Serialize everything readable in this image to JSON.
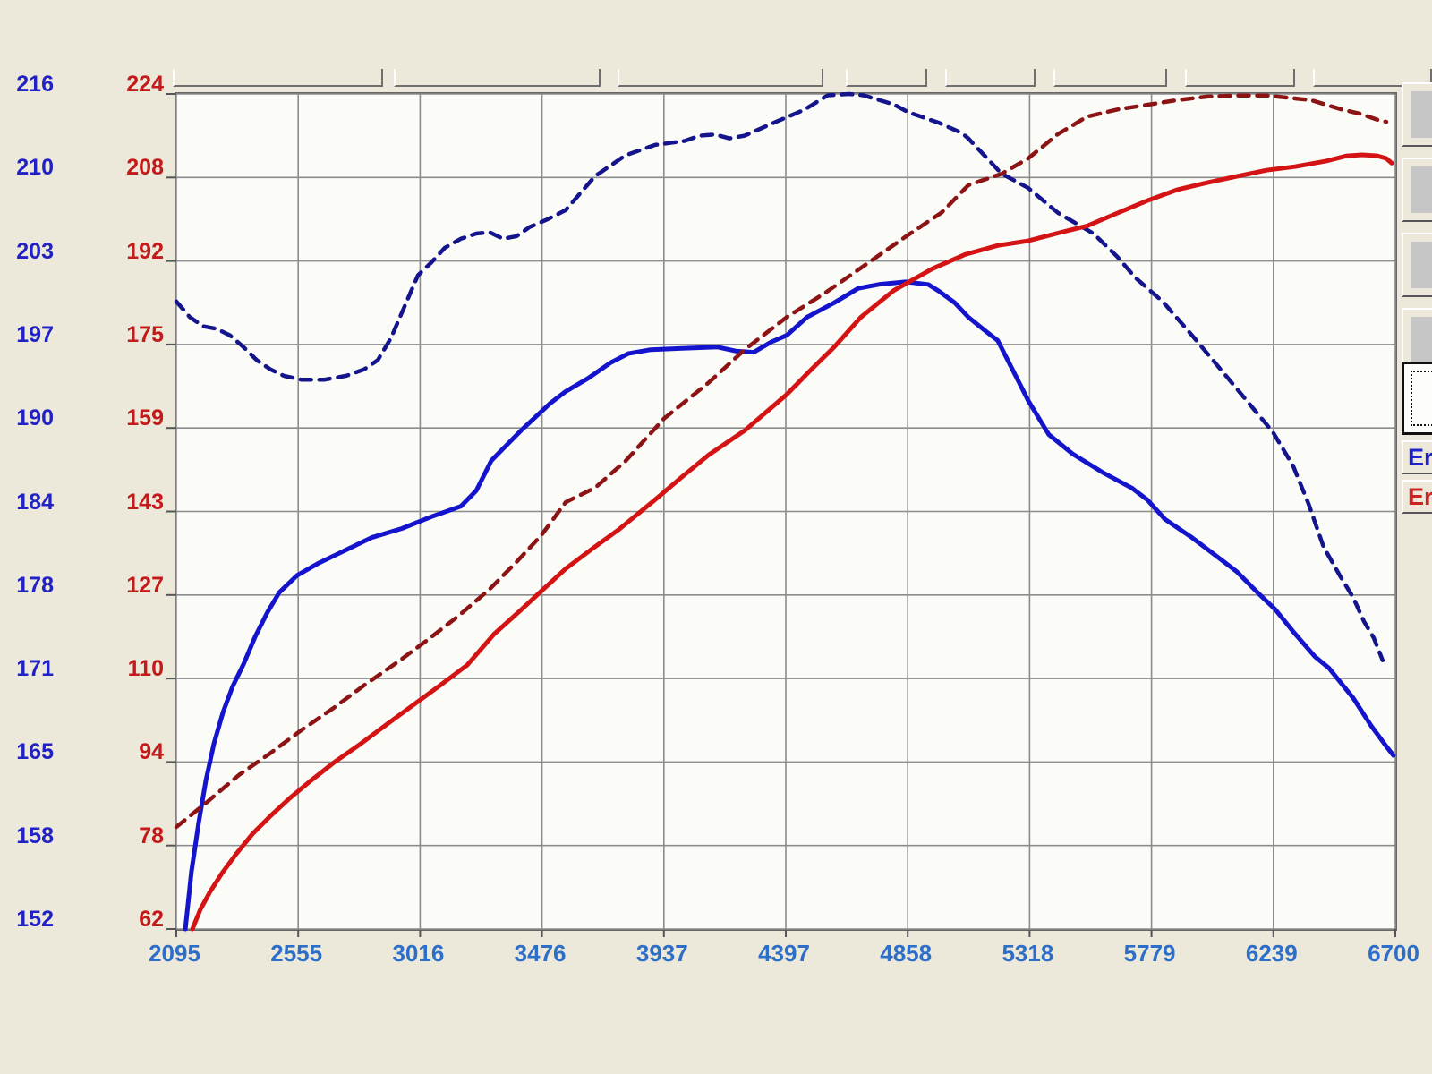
{
  "window": {
    "background_color": "#ece9da",
    "plot_background": "#fbfbf8"
  },
  "top_toolbar": {
    "note": "row of partially visible (cut-off) buttons, no readable labels",
    "button_count": 8
  },
  "right_panel": {
    "buttons": [
      {
        "name": "arrow-button-1",
        "glyph": "↖"
      },
      {
        "name": "arrow-button-2",
        "glyph": "↙"
      },
      {
        "name": "arrow-button-3",
        "glyph": "↘"
      },
      {
        "name": "arrow-button-4",
        "glyph": "↕"
      }
    ],
    "selection_button": {
      "name": "selection-rectangle-button"
    },
    "er_buttons": [
      {
        "label": "Er",
        "color": "#2222cc"
      },
      {
        "label": "Er",
        "color": "#cc2222"
      }
    ]
  },
  "chart_data": {
    "type": "line",
    "title": "",
    "xlabel": "",
    "ylabel": "",
    "grid": true,
    "legend_position": "none",
    "x_axis": {
      "min": 2095,
      "max": 6700,
      "tick_labels": [
        "2095",
        "2555",
        "3016",
        "3476",
        "3937",
        "4397",
        "4858",
        "5318",
        "5779",
        "6239",
        "6700"
      ],
      "label_color": "#2d6fc8"
    },
    "left_axis_blue": {
      "min": 152,
      "max": 216,
      "tick_labels": [
        "216",
        "210",
        "203",
        "197",
        "190",
        "184",
        "178",
        "171",
        "165",
        "158",
        "152"
      ],
      "label_color": "#2121c4"
    },
    "left_axis_red": {
      "min": 62,
      "max": 224,
      "tick_labels": [
        "224",
        "208",
        "192",
        "175",
        "159",
        "143",
        "127",
        "110",
        "94",
        "78",
        "62"
      ],
      "label_color": "#c41a1a"
    },
    "grid_color": "#8c8c8c",
    "series": [
      {
        "name": "blue-solid",
        "axis": "blue",
        "style": "solid",
        "color": "#1414cc",
        "points": [
          [
            2129,
            152.0
          ],
          [
            2152,
            156.4
          ],
          [
            2180,
            160.2
          ],
          [
            2207,
            163.4
          ],
          [
            2237,
            166.2
          ],
          [
            2271,
            168.6
          ],
          [
            2308,
            170.6
          ],
          [
            2349,
            172.3
          ],
          [
            2393,
            174.4
          ],
          [
            2440,
            176.3
          ],
          [
            2484,
            177.8
          ],
          [
            2551,
            179.1
          ],
          [
            2629,
            180.0
          ],
          [
            2720,
            180.9
          ],
          [
            2832,
            182.0
          ],
          [
            2947,
            182.7
          ],
          [
            3059,
            183.6
          ],
          [
            3170,
            184.4
          ],
          [
            3228,
            185.6
          ],
          [
            3285,
            187.9
          ],
          [
            3397,
            190.2
          ],
          [
            3508,
            192.3
          ],
          [
            3566,
            193.2
          ],
          [
            3650,
            194.2
          ],
          [
            3735,
            195.4
          ],
          [
            3802,
            196.1
          ],
          [
            3887,
            196.4
          ],
          [
            4005,
            196.5
          ],
          [
            4140,
            196.6
          ],
          [
            4208,
            196.3
          ],
          [
            4276,
            196.2
          ],
          [
            4343,
            197.0
          ],
          [
            4401,
            197.5
          ],
          [
            4478,
            198.9
          ],
          [
            4580,
            200.0
          ],
          [
            4671,
            201.1
          ],
          [
            4749,
            201.4
          ],
          [
            4850,
            201.6
          ],
          [
            4935,
            201.4
          ],
          [
            4975,
            200.9
          ],
          [
            5036,
            200.0
          ],
          [
            5087,
            198.9
          ],
          [
            5154,
            197.8
          ],
          [
            5198,
            197.1
          ],
          [
            5256,
            194.8
          ],
          [
            5313,
            192.5
          ],
          [
            5391,
            189.9
          ],
          [
            5482,
            188.4
          ],
          [
            5594,
            187.0
          ],
          [
            5705,
            185.8
          ],
          [
            5763,
            184.9
          ],
          [
            5830,
            183.4
          ],
          [
            5932,
            182.0
          ],
          [
            6010,
            180.8
          ],
          [
            6101,
            179.4
          ],
          [
            6179,
            177.8
          ],
          [
            6246,
            176.5
          ],
          [
            6314,
            174.8
          ],
          [
            6395,
            172.9
          ],
          [
            6449,
            172.0
          ],
          [
            6497,
            170.8
          ],
          [
            6541,
            169.7
          ],
          [
            6608,
            167.6
          ],
          [
            6666,
            166.0
          ],
          [
            6693,
            165.3
          ]
        ]
      },
      {
        "name": "blue-dashed",
        "axis": "blue",
        "style": "dashed",
        "color": "#14148c",
        "points": [
          [
            2095,
            200.1
          ],
          [
            2146,
            198.9
          ],
          [
            2196,
            198.2
          ],
          [
            2247,
            198.0
          ],
          [
            2298,
            197.5
          ],
          [
            2349,
            196.6
          ],
          [
            2399,
            195.6
          ],
          [
            2450,
            194.9
          ],
          [
            2501,
            194.4
          ],
          [
            2568,
            194.1
          ],
          [
            2653,
            194.1
          ],
          [
            2737,
            194.4
          ],
          [
            2805,
            194.9
          ],
          [
            2856,
            195.6
          ],
          [
            2906,
            197.3
          ],
          [
            2957,
            199.7
          ],
          [
            3008,
            202.1
          ],
          [
            3059,
            203.1
          ],
          [
            3109,
            204.2
          ],
          [
            3170,
            204.9
          ],
          [
            3228,
            205.3
          ],
          [
            3278,
            205.4
          ],
          [
            3329,
            204.9
          ],
          [
            3380,
            205.1
          ],
          [
            3430,
            205.8
          ],
          [
            3498,
            206.4
          ],
          [
            3566,
            207.1
          ],
          [
            3677,
            209.7
          ],
          [
            3792,
            211.3
          ],
          [
            3904,
            212.1
          ],
          [
            4015,
            212.4
          ],
          [
            4073,
            212.8
          ],
          [
            4130,
            212.9
          ],
          [
            4184,
            212.6
          ],
          [
            4242,
            212.8
          ],
          [
            4353,
            213.8
          ],
          [
            4468,
            214.8
          ],
          [
            4556,
            215.9
          ],
          [
            4637,
            216.0
          ],
          [
            4691,
            215.9
          ],
          [
            4806,
            215.2
          ],
          [
            4860,
            214.6
          ],
          [
            4975,
            213.8
          ],
          [
            5063,
            213.0
          ],
          [
            5087,
            212.6
          ],
          [
            5212,
            209.9
          ],
          [
            5313,
            208.8
          ],
          [
            5425,
            206.9
          ],
          [
            5560,
            205.3
          ],
          [
            5651,
            203.5
          ],
          [
            5719,
            201.9
          ],
          [
            5821,
            200.1
          ],
          [
            5932,
            197.5
          ],
          [
            6044,
            194.8
          ],
          [
            6159,
            192.0
          ],
          [
            6237,
            190.1
          ],
          [
            6314,
            187.5
          ],
          [
            6372,
            184.6
          ],
          [
            6429,
            181.3
          ],
          [
            6490,
            179.1
          ],
          [
            6541,
            177.4
          ],
          [
            6581,
            175.6
          ],
          [
            6619,
            174.3
          ],
          [
            6652,
            172.6
          ]
        ]
      },
      {
        "name": "red-solid",
        "axis": "red",
        "style": "solid",
        "color": "#d41414",
        "points": [
          [
            2156,
            62.0
          ],
          [
            2186,
            65.8
          ],
          [
            2223,
            69.3
          ],
          [
            2267,
            72.8
          ],
          [
            2322,
            76.6
          ],
          [
            2382,
            80.4
          ],
          [
            2450,
            83.9
          ],
          [
            2524,
            87.4
          ],
          [
            2606,
            90.9
          ],
          [
            2693,
            94.4
          ],
          [
            2788,
            97.8
          ],
          [
            2890,
            101.7
          ],
          [
            2991,
            105.5
          ],
          [
            3092,
            109.3
          ],
          [
            3194,
            113.2
          ],
          [
            3295,
            119.2
          ],
          [
            3397,
            123.9
          ],
          [
            3481,
            127.9
          ],
          [
            3566,
            131.9
          ],
          [
            3667,
            135.8
          ],
          [
            3769,
            139.6
          ],
          [
            3904,
            145.3
          ],
          [
            4005,
            149.7
          ],
          [
            4107,
            154.0
          ],
          [
            4242,
            158.7
          ],
          [
            4401,
            165.7
          ],
          [
            4495,
            170.6
          ],
          [
            4580,
            174.9
          ],
          [
            4681,
            180.7
          ],
          [
            4806,
            185.9
          ],
          [
            4952,
            190.1
          ],
          [
            5077,
            192.9
          ],
          [
            5198,
            194.6
          ],
          [
            5313,
            195.5
          ],
          [
            5425,
            197.0
          ],
          [
            5536,
            198.4
          ],
          [
            5651,
            200.9
          ],
          [
            5763,
            203.3
          ],
          [
            5875,
            205.4
          ],
          [
            5990,
            206.8
          ],
          [
            6101,
            208.0
          ],
          [
            6213,
            209.2
          ],
          [
            6321,
            209.9
          ],
          [
            6439,
            211.0
          ],
          [
            6517,
            212.0
          ],
          [
            6575,
            212.2
          ],
          [
            6632,
            212.0
          ],
          [
            6666,
            211.5
          ],
          [
            6686,
            210.6
          ]
        ]
      },
      {
        "name": "red-dashed",
        "axis": "red",
        "style": "dashed",
        "color": "#8c1414",
        "points": [
          [
            2095,
            81.8
          ],
          [
            2213,
            86.7
          ],
          [
            2332,
            91.9
          ],
          [
            2450,
            96.1
          ],
          [
            2568,
            100.6
          ],
          [
            2687,
            104.8
          ],
          [
            2805,
            109.3
          ],
          [
            2923,
            113.5
          ],
          [
            3042,
            118.0
          ],
          [
            3160,
            122.7
          ],
          [
            3278,
            127.9
          ],
          [
            3380,
            133.2
          ],
          [
            3474,
            138.4
          ],
          [
            3566,
            144.8
          ],
          [
            3677,
            147.6
          ],
          [
            3792,
            152.8
          ],
          [
            3937,
            161.0
          ],
          [
            4106,
            168.0
          ],
          [
            4242,
            174.4
          ],
          [
            4401,
            180.7
          ],
          [
            4546,
            185.4
          ],
          [
            4691,
            190.6
          ],
          [
            4850,
            196.3
          ],
          [
            4986,
            201.0
          ],
          [
            5087,
            206.3
          ],
          [
            5212,
            208.5
          ],
          [
            5313,
            211.5
          ],
          [
            5425,
            216.2
          ],
          [
            5536,
            219.6
          ],
          [
            5651,
            221.0
          ],
          [
            5763,
            221.9
          ],
          [
            5875,
            222.8
          ],
          [
            5990,
            223.5
          ],
          [
            6101,
            223.7
          ],
          [
            6213,
            223.7
          ],
          [
            6328,
            223.1
          ],
          [
            6382,
            222.8
          ],
          [
            6497,
            221.0
          ],
          [
            6565,
            220.2
          ],
          [
            6632,
            219.0
          ],
          [
            6666,
            218.6
          ]
        ]
      }
    ]
  }
}
